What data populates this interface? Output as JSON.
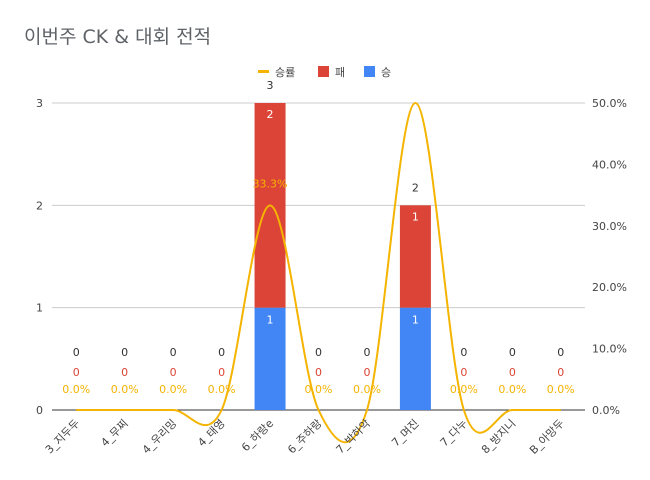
{
  "chart_data": {
    "type": "bar",
    "title": "이번주 CK & 대회 전적",
    "categories": [
      "3_지두두",
      "4_무찌",
      "4_우리밍",
      "4_태영",
      "6_하랑e",
      "6_주하랑",
      "7_박하악",
      "7_며진",
      "7_다누",
      "8_방지니",
      "B_아망두"
    ],
    "series": [
      {
        "name": "승",
        "type": "stacked-bar",
        "color": "#4285f4",
        "values": [
          0,
          0,
          0,
          0,
          1,
          0,
          0,
          1,
          0,
          0,
          0
        ]
      },
      {
        "name": "패",
        "type": "stacked-bar",
        "color": "#db4437",
        "values": [
          0,
          0,
          0,
          0,
          2,
          0,
          0,
          1,
          0,
          0,
          0
        ]
      },
      {
        "name": "승률",
        "type": "line",
        "axis": "right",
        "color": "#f4b400",
        "values": [
          0,
          0,
          0,
          0,
          33.3,
          0,
          0,
          50.0,
          0,
          0,
          0
        ]
      }
    ],
    "totals": [
      0,
      0,
      0,
      0,
      3,
      0,
      0,
      2,
      0,
      0,
      0
    ],
    "loss_labels": [
      "0",
      "0",
      "0",
      "0",
      "2",
      "0",
      "0",
      "1",
      "0",
      "0",
      "0"
    ],
    "win_labels": [
      "",
      "",
      "",
      "",
      "1",
      "",
      "",
      "1",
      "",
      "",
      ""
    ],
    "rate_labels": [
      "0.0%",
      "0.0%",
      "0.0%",
      "0.0%",
      "33.3%",
      "0.0%",
      "0.0%",
      "",
      "0.0%",
      "0.0%",
      "0.0%"
    ],
    "ylim": [
      0,
      3
    ],
    "y_ticks": [
      "0",
      "1",
      "2",
      "3"
    ],
    "y2lim": [
      0,
      50
    ],
    "y2_ticks": [
      "0.0%",
      "10.0%",
      "20.0%",
      "30.0%",
      "40.0%",
      "50.0%"
    ],
    "legend": {
      "position": "top",
      "entries": [
        "승률",
        "패",
        "승"
      ]
    },
    "grid": true
  }
}
